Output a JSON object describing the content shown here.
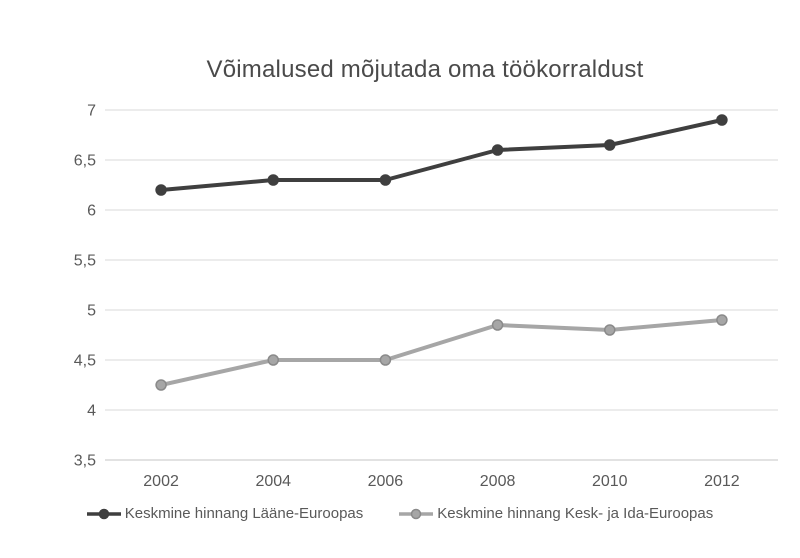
{
  "title": "Võimalused mõjutada oma töökorraldust",
  "chart_data": {
    "type": "line",
    "title": "Võimalused mõjutada oma töökorraldust",
    "categories": [
      "2002",
      "2004",
      "2006",
      "2008",
      "2010",
      "2012"
    ],
    "series": [
      {
        "name": "Keskmine hinnang Lääne-Euroopas",
        "values": [
          6.2,
          6.3,
          6.3,
          6.6,
          6.65,
          6.9
        ],
        "color": "#3f3f3f",
        "marker_fill": "#3f3f3f",
        "marker_stroke": "#3f3f3f"
      },
      {
        "name": "Keskmine hinnang Kesk- ja Ida-Euroopas",
        "values": [
          4.25,
          4.5,
          4.5,
          4.85,
          4.8,
          4.9
        ],
        "color": "#a6a6a6",
        "marker_fill": "#a6a6a6",
        "marker_stroke": "#8a8a8a"
      }
    ],
    "ylim": [
      3.5,
      7
    ],
    "ytick_step": 0.5,
    "ytick_labels": [
      "7",
      "6,5",
      "6",
      "5,5",
      "5",
      "4,5",
      "4",
      "3,5"
    ],
    "decimal_separator": ",",
    "xlabel": "",
    "ylabel": "",
    "grid": true,
    "legend_position": "bottom"
  },
  "style": {
    "grid_color": "#d9d9d9",
    "axis_line_color": "#c6c6c6",
    "tick_label_color": "#595959",
    "title_color": "#4a4a4a",
    "legend_text_color": "#595959",
    "background": "#ffffff"
  }
}
